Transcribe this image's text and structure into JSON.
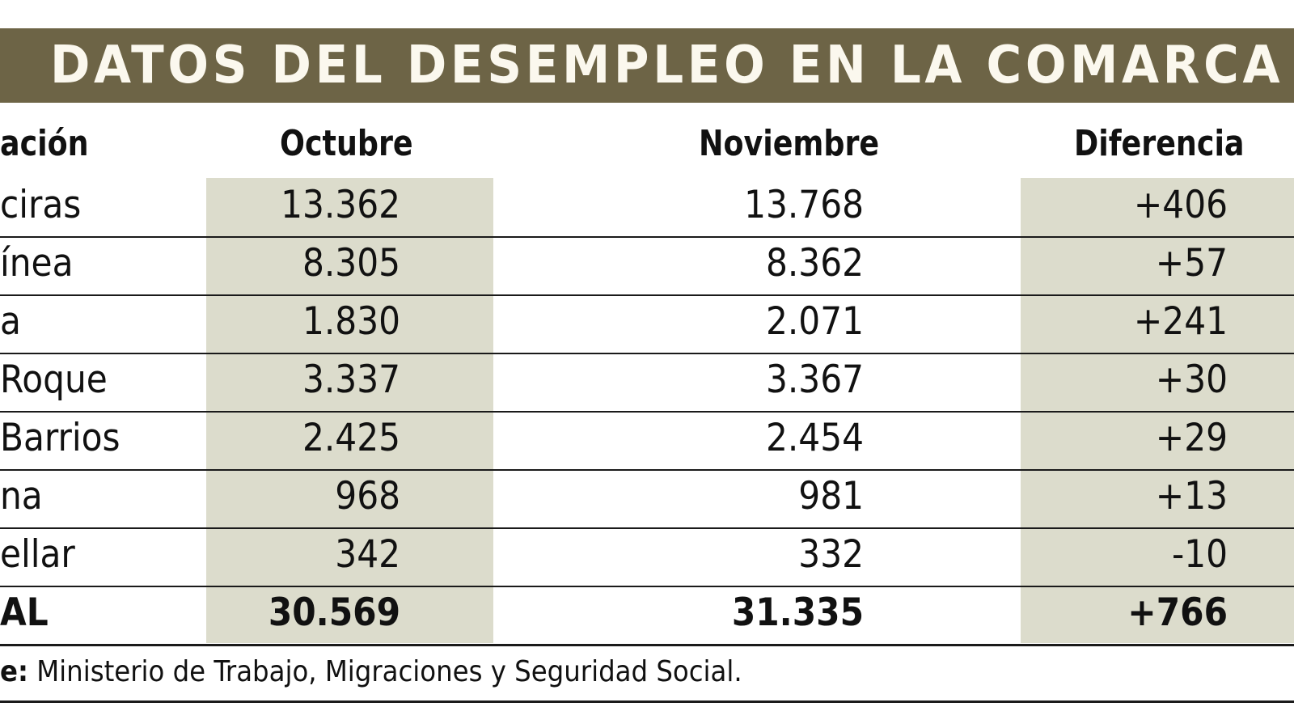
{
  "title": "DATOS DEL DESEMPLEO EN LA COMARCA",
  "colors": {
    "banner": "#6d6446",
    "banner_text": "#fbf8ee",
    "shade": "#dcdccc"
  },
  "chart_data": {
    "type": "table",
    "title": "DATOS DEL DESEMPLEO EN LA COMARCA",
    "columns": [
      "ación",
      "Octubre",
      "Noviembre",
      "Diferencia"
    ],
    "rows": [
      [
        "ciras",
        "13.362",
        "13.768",
        "+406"
      ],
      [
        "ínea",
        "8.305",
        "8.362",
        "+57"
      ],
      [
        "a",
        "1.830",
        "2.071",
        "+241"
      ],
      [
        "Roque",
        "3.337",
        "3.367",
        "+30"
      ],
      [
        "Barrios",
        "2.425",
        "2.454",
        "+29"
      ],
      [
        "na",
        "968",
        "981",
        "+13"
      ],
      [
        "ellar",
        "342",
        "332",
        "-10"
      ]
    ],
    "total": [
      "AL",
      "30.569",
      "31.335",
      "+766"
    ]
  },
  "source": {
    "label": "e:",
    "text": "Ministerio de Trabajo, Migraciones y Seguridad Social."
  }
}
